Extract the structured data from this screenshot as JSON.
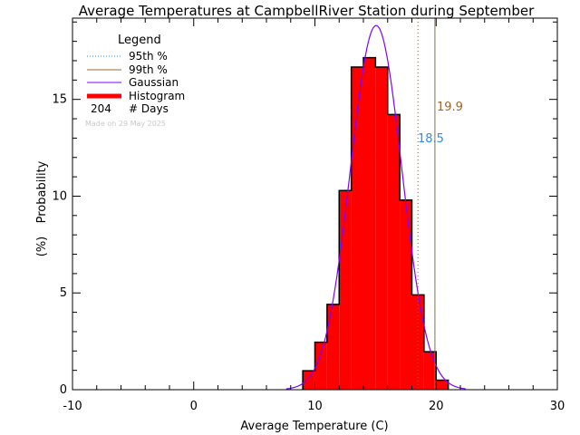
{
  "chart_data": {
    "type": "bar",
    "title": "Average Temperatures at CampbellRiver Station during September",
    "xlabel": "Average Temperature (C)",
    "ylabel": "Probability",
    "ylabel_unit": "(%)",
    "xlim": [
      -10,
      30
    ],
    "ylim": [
      0,
      19.2
    ],
    "x_ticks": [
      "-10",
      "0",
      "10",
      "20",
      "30"
    ],
    "y_ticks": [
      "0",
      "5",
      "10",
      "15"
    ],
    "x_tick_values": [
      -10,
      0,
      10,
      20,
      30
    ],
    "y_tick_values": [
      0,
      5,
      10,
      15
    ],
    "bin_width": 1,
    "bin_starts": [
      9,
      10,
      11,
      12,
      13,
      14,
      15,
      16,
      17,
      18,
      19,
      20
    ],
    "values": [
      0.98,
      2.45,
      4.41,
      10.29,
      16.67,
      17.16,
      16.67,
      14.22,
      9.8,
      4.9,
      1.96,
      0.49
    ],
    "gaussian": {
      "mean": 15.05,
      "sigma": 2.12
    },
    "percentile_95": {
      "value": 18.5,
      "label": "18.5",
      "color": "#1e90ff"
    },
    "percentile_99": {
      "value": 19.9,
      "label": "19.9",
      "color": "#a0642d"
    },
    "legend": {
      "title": "Legend",
      "placement": "top-left",
      "entries": [
        {
          "label": "95th %",
          "color": "#1e90ff",
          "style": "dotted"
        },
        {
          "label": "99th %",
          "color": "#a0642d",
          "style": "solid"
        },
        {
          "label": "Gaussian",
          "color": "#8000ff",
          "style": "solid"
        },
        {
          "label": "Histogram",
          "color": "#ff0000",
          "style": "thick"
        }
      ],
      "count": "204",
      "count_label": "# Days",
      "made_on": "Made on 29 May 2025"
    },
    "colors": {
      "histogram": "#ff0000",
      "gaussian": "#8000ff"
    },
    "grid": false
  }
}
